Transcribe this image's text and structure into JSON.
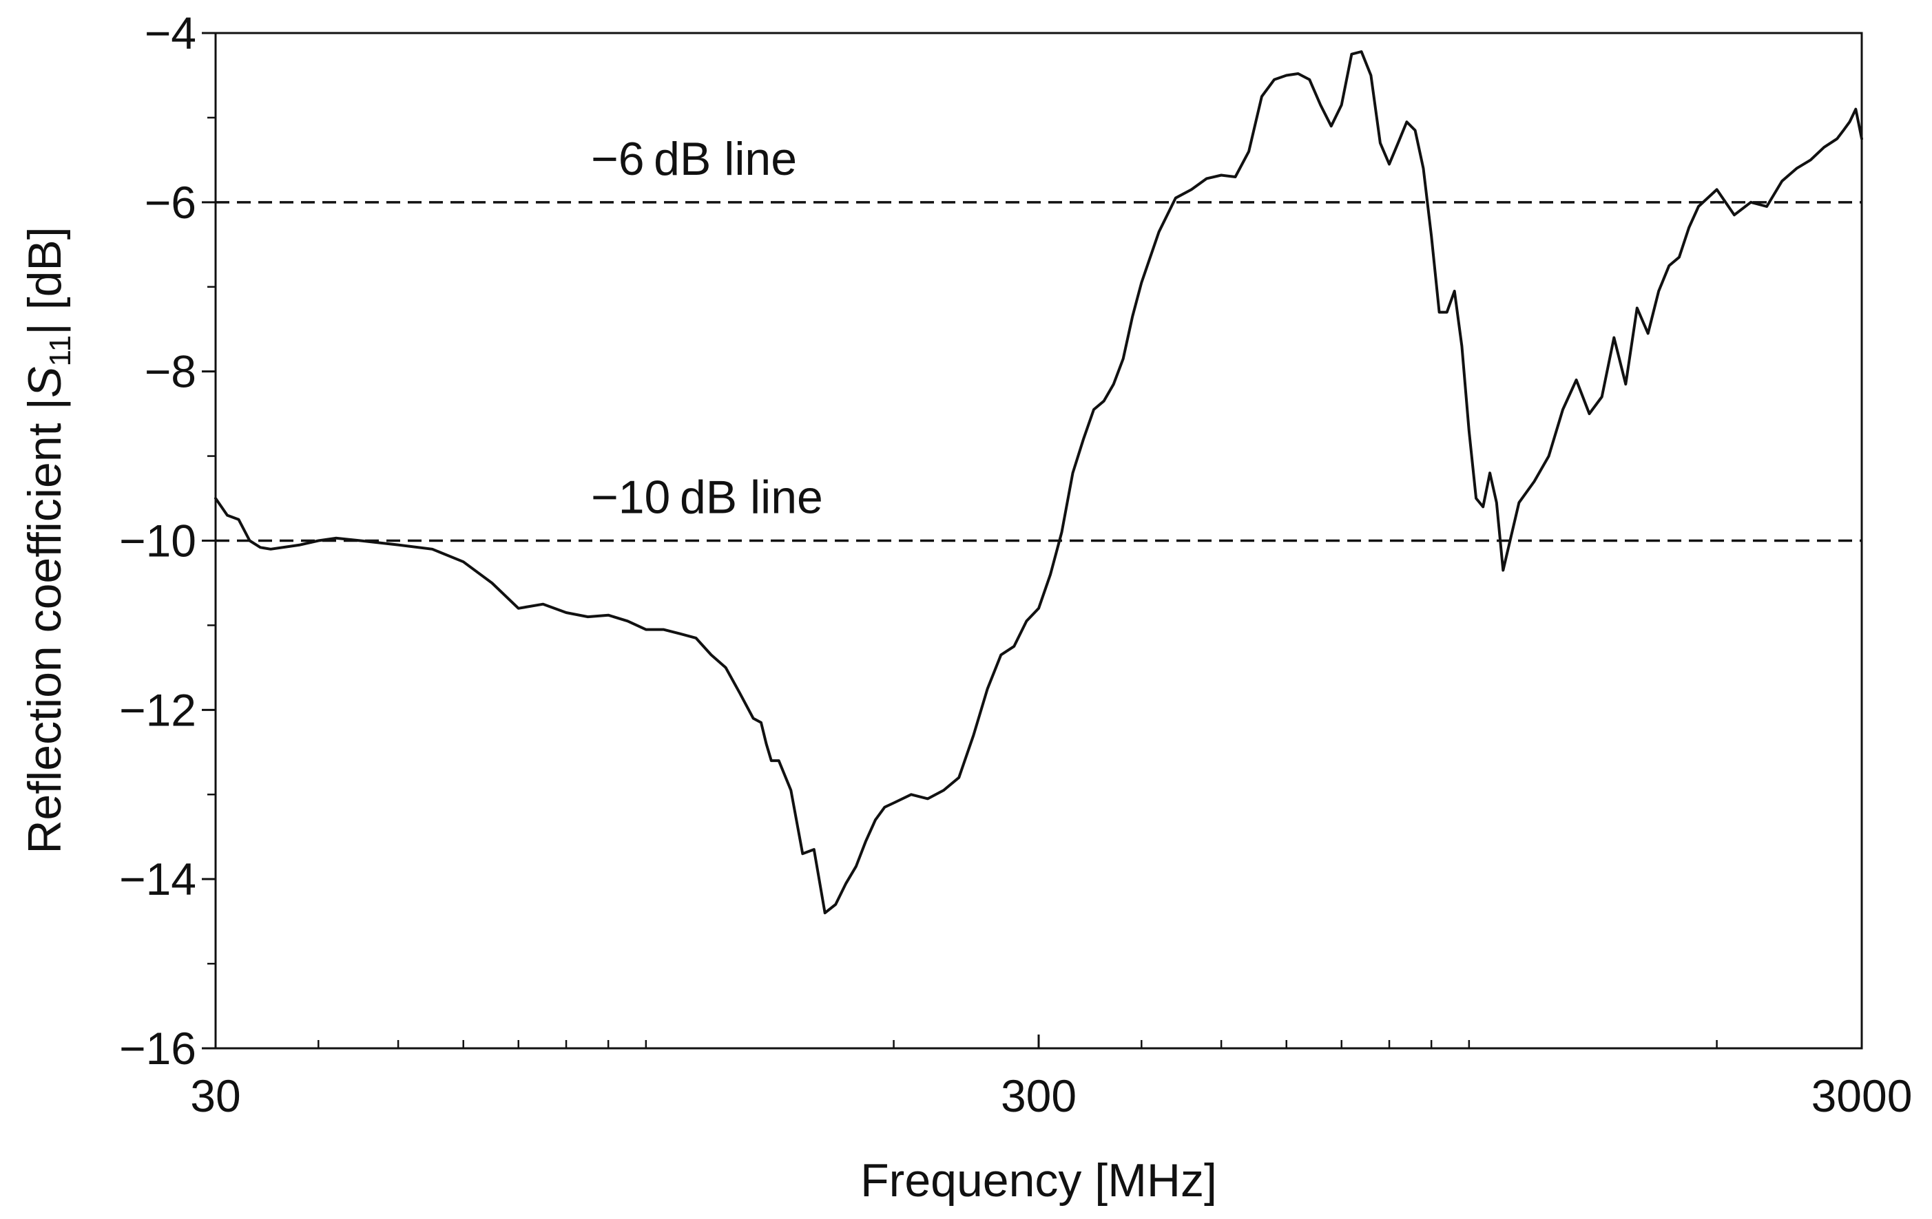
{
  "chart_data": {
    "type": "line",
    "xlabel": "Frequency [MHz]",
    "ylabel_main": "Reflection coefficient |",
    "ylabel_symbol": "S",
    "ylabel_sub": "11",
    "ylabel_tail": "| [dB]",
    "x_scale": "log",
    "xlim": [
      30,
      3000
    ],
    "ylim": [
      -16,
      -4
    ],
    "x_major_ticks": [
      30,
      300,
      3000
    ],
    "x_minor_ticks": [
      40,
      50,
      60,
      70,
      80,
      90,
      100,
      200,
      400,
      500,
      600,
      700,
      800,
      900,
      1000,
      2000
    ],
    "y_major_ticks": [
      -16,
      -14,
      -12,
      -10,
      -8,
      -6,
      -4
    ],
    "y_minor_ticks": [
      -15,
      -13,
      -11,
      -9,
      -7,
      -5
    ],
    "tick_labels": {
      "x": [
        "30",
        "300",
        "3000"
      ],
      "y": [
        "−16",
        "−14",
        "−12",
        "−10",
        "−8",
        "−6",
        "−4"
      ]
    },
    "grid": false,
    "reference_lines": [
      {
        "y": -6,
        "label": "−6 dB line",
        "style": "dashed"
      },
      {
        "y": -10,
        "label": "−10 dB line",
        "style": "dashed"
      }
    ],
    "series": [
      {
        "color": "#111111",
        "x": [
          30,
          31,
          32,
          33,
          34,
          35,
          38,
          40,
          42,
          45,
          50,
          55,
          60,
          65,
          70,
          75,
          80,
          85,
          90,
          95,
          100,
          105,
          110,
          115,
          120,
          125,
          130,
          135,
          138,
          140,
          142,
          145,
          150,
          155,
          160,
          165,
          170,
          175,
          180,
          185,
          190,
          195,
          200,
          210,
          220,
          230,
          240,
          250,
          260,
          270,
          280,
          290,
          300,
          310,
          320,
          330,
          340,
          350,
          360,
          370,
          380,
          390,
          400,
          420,
          440,
          460,
          480,
          500,
          520,
          540,
          560,
          580,
          600,
          620,
          640,
          660,
          680,
          700,
          720,
          740,
          760,
          780,
          800,
          820,
          840,
          860,
          880,
          900,
          920,
          940,
          960,
          980,
          1000,
          1020,
          1040,
          1060,
          1080,
          1100,
          1150,
          1200,
          1250,
          1300,
          1350,
          1400,
          1450,
          1500,
          1550,
          1600,
          1650,
          1700,
          1750,
          1800,
          1850,
          1900,
          2000,
          2100,
          2200,
          2300,
          2400,
          2500,
          2600,
          2700,
          2800,
          2850,
          2900,
          2950,
          3000
        ],
        "y": [
          -9.5,
          -9.7,
          -9.75,
          -10.0,
          -10.08,
          -10.1,
          -10.05,
          -10.0,
          -9.97,
          -10.0,
          -10.05,
          -10.1,
          -10.25,
          -10.5,
          -10.8,
          -10.75,
          -10.85,
          -10.9,
          -10.88,
          -10.95,
          -11.05,
          -11.05,
          -11.1,
          -11.15,
          -11.35,
          -11.5,
          -11.8,
          -12.1,
          -12.15,
          -12.4,
          -12.6,
          -12.6,
          -12.95,
          -13.7,
          -13.65,
          -14.4,
          -14.3,
          -14.05,
          -13.85,
          -13.55,
          -13.3,
          -13.15,
          -13.1,
          -13.0,
          -13.05,
          -12.95,
          -12.8,
          -12.3,
          -11.75,
          -11.35,
          -11.25,
          -10.95,
          -10.8,
          -10.4,
          -9.9,
          -9.2,
          -8.8,
          -8.45,
          -8.35,
          -8.15,
          -7.85,
          -7.35,
          -6.95,
          -6.35,
          -5.95,
          -5.85,
          -5.72,
          -5.68,
          -5.7,
          -5.4,
          -4.75,
          -4.55,
          -4.5,
          -4.48,
          -4.55,
          -4.85,
          -5.1,
          -4.85,
          -4.25,
          -4.22,
          -4.5,
          -5.3,
          -5.55,
          -5.3,
          -5.05,
          -5.15,
          -5.6,
          -6.4,
          -7.3,
          -7.3,
          -7.05,
          -7.7,
          -8.7,
          -9.5,
          -9.6,
          -9.2,
          -9.55,
          -10.35,
          -9.55,
          -9.3,
          -9.0,
          -8.45,
          -8.1,
          -8.5,
          -8.3,
          -7.6,
          -8.15,
          -7.25,
          -7.55,
          -7.05,
          -6.75,
          -6.65,
          -6.3,
          -6.05,
          -5.85,
          -6.15,
          -6.0,
          -6.05,
          -5.75,
          -5.6,
          -5.5,
          -5.35,
          -5.25,
          -5.15,
          -5.05,
          -4.9,
          -5.25
        ]
      }
    ]
  }
}
